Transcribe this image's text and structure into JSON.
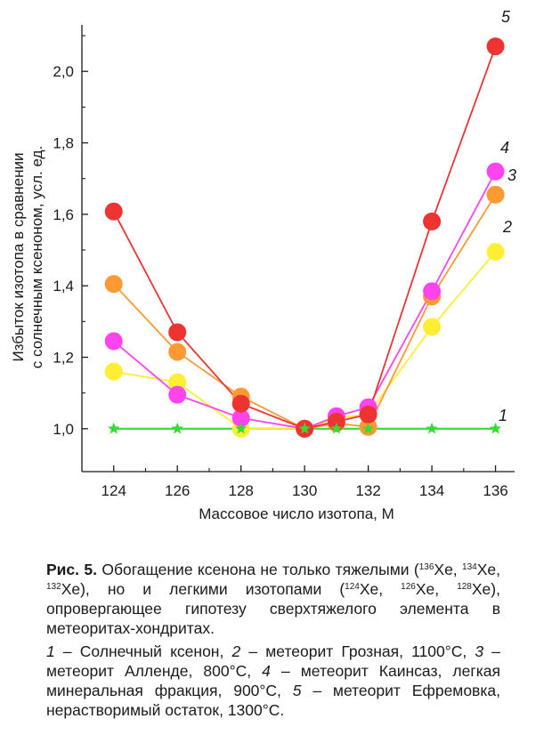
{
  "chart_data": {
    "type": "line",
    "xlabel": "Массовое число изотопа, M",
    "ylabel_line1": "Избыток изотопа в сравнении",
    "ylabel_line2": "с солнечным ксеноном, усл. ед.",
    "x_ticks": [
      "124",
      "126",
      "128",
      "130",
      "132",
      "134",
      "136"
    ],
    "y_ticks": [
      "1,0",
      "1,2",
      "1,4",
      "1,6",
      "1,8",
      "2,0"
    ],
    "xlim": [
      123,
      136.6
    ],
    "ylim": [
      0.88,
      2.13
    ],
    "grid": false,
    "series": [
      {
        "name": "1",
        "color": "#33dd33",
        "marker": "star",
        "points": [
          [
            124,
            1.0
          ],
          [
            126,
            1.0
          ],
          [
            128,
            1.0
          ],
          [
            130,
            1.0
          ],
          [
            131,
            1.0
          ],
          [
            132,
            1.0
          ],
          [
            134,
            1.0
          ],
          [
            136,
            1.0
          ]
        ]
      },
      {
        "name": "2",
        "color": "#ffee33",
        "marker": "circle",
        "points": [
          [
            124,
            1.16
          ],
          [
            126,
            1.13
          ],
          [
            128,
            1.0
          ],
          [
            130,
            1.0
          ],
          [
            131,
            1.03
          ],
          [
            132,
            1.04
          ],
          [
            134,
            1.285
          ],
          [
            136,
            1.495
          ]
        ]
      },
      {
        "name": "3",
        "color": "#ff9933",
        "marker": "circle",
        "points": [
          [
            124,
            1.405
          ],
          [
            126,
            1.215
          ],
          [
            128,
            1.09
          ],
          [
            130,
            1.0
          ],
          [
            131,
            1.015
          ],
          [
            132,
            1.005
          ],
          [
            134,
            1.37
          ],
          [
            136,
            1.655
          ]
        ]
      },
      {
        "name": "4",
        "color": "#ff44ee",
        "marker": "circle",
        "points": [
          [
            124,
            1.245
          ],
          [
            126,
            1.095
          ],
          [
            128,
            1.03
          ],
          [
            130,
            1.0
          ],
          [
            131,
            1.035
          ],
          [
            132,
            1.06
          ],
          [
            134,
            1.385
          ],
          [
            136,
            1.72
          ]
        ]
      },
      {
        "name": "5",
        "color": "#ee3333",
        "marker": "circle",
        "points": [
          [
            124,
            1.608
          ],
          [
            126,
            1.27
          ],
          [
            128,
            1.07
          ],
          [
            130,
            1.0
          ],
          [
            131,
            1.02
          ],
          [
            132,
            1.04
          ],
          [
            134,
            1.58
          ],
          [
            136,
            2.07
          ]
        ]
      }
    ]
  },
  "caption": {
    "fig": "Рис. 5.",
    "main": [
      " Обогащение ксенона не только тяжелыми (",
      {
        "sup": "136"
      },
      "Xe, ",
      {
        "sup": "134"
      },
      "Xe, ",
      {
        "sup": "132"
      },
      "Xe), но и легкими изотопами (",
      {
        "sup": "124"
      },
      "Xe, ",
      {
        "sup": "126"
      },
      "Xe, ",
      {
        "sup": "128"
      },
      "Xe), опровергающее гипотезу сверхтяжелого элемента в метеоритах-хондритах."
    ],
    "legend": [
      {
        "i": "1"
      },
      " – Солнечный ксенон, ",
      {
        "i": "2"
      },
      " – метеорит Грозная, 1100°С, ",
      {
        "i": "3"
      },
      " – метеорит Алленде, 800°С, ",
      {
        "i": "4"
      },
      " – метеорит Каинсаз, легкая минеральная фракция, 900°С, ",
      {
        "i": "5"
      },
      " – метеорит Ефремовка, нерастворимый остаток, 1300°С."
    ]
  }
}
